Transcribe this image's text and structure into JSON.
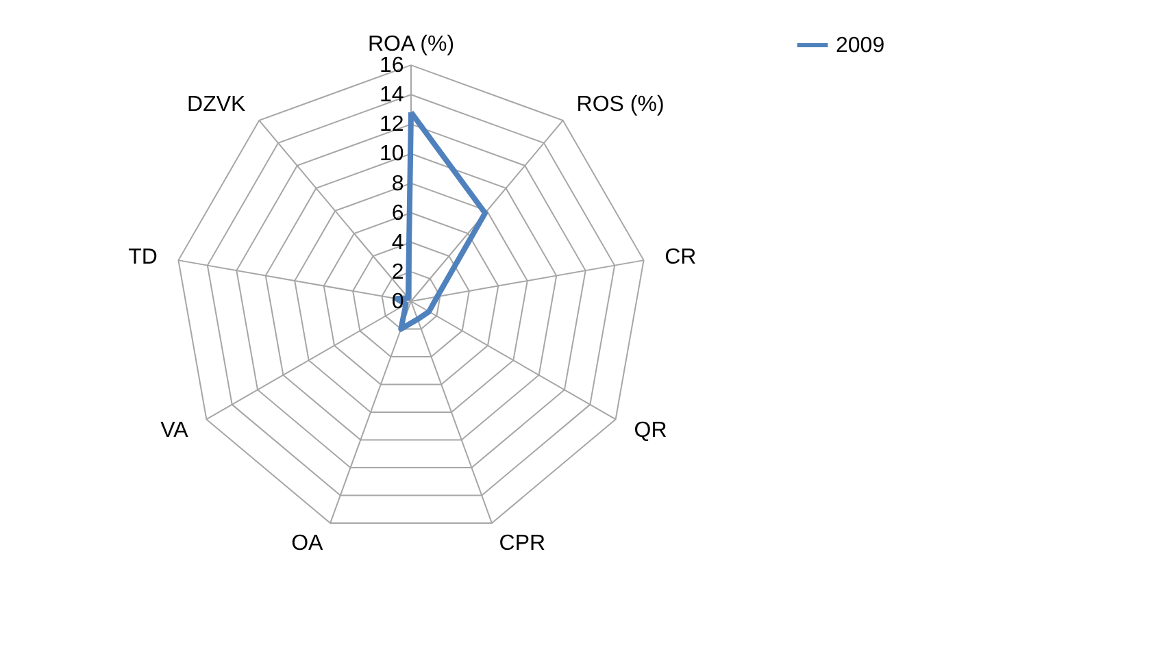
{
  "chart_data": {
    "type": "radar",
    "categories": [
      "ROA (%)",
      "ROS (%)",
      "CR",
      "QR",
      "CPR",
      "OA",
      "VA",
      "TD",
      "DZVK"
    ],
    "series": [
      {
        "name": "2009",
        "color": "#4f81bd",
        "values": [
          12.8,
          7.8,
          1.8,
          1.4,
          1.3,
          2.0,
          0.4,
          1.0,
          0.3
        ]
      }
    ],
    "ylim": [
      0,
      16
    ],
    "yticks": [
      0,
      2,
      4,
      6,
      8,
      10,
      12,
      14,
      16
    ],
    "grid": true,
    "legend": "right"
  }
}
